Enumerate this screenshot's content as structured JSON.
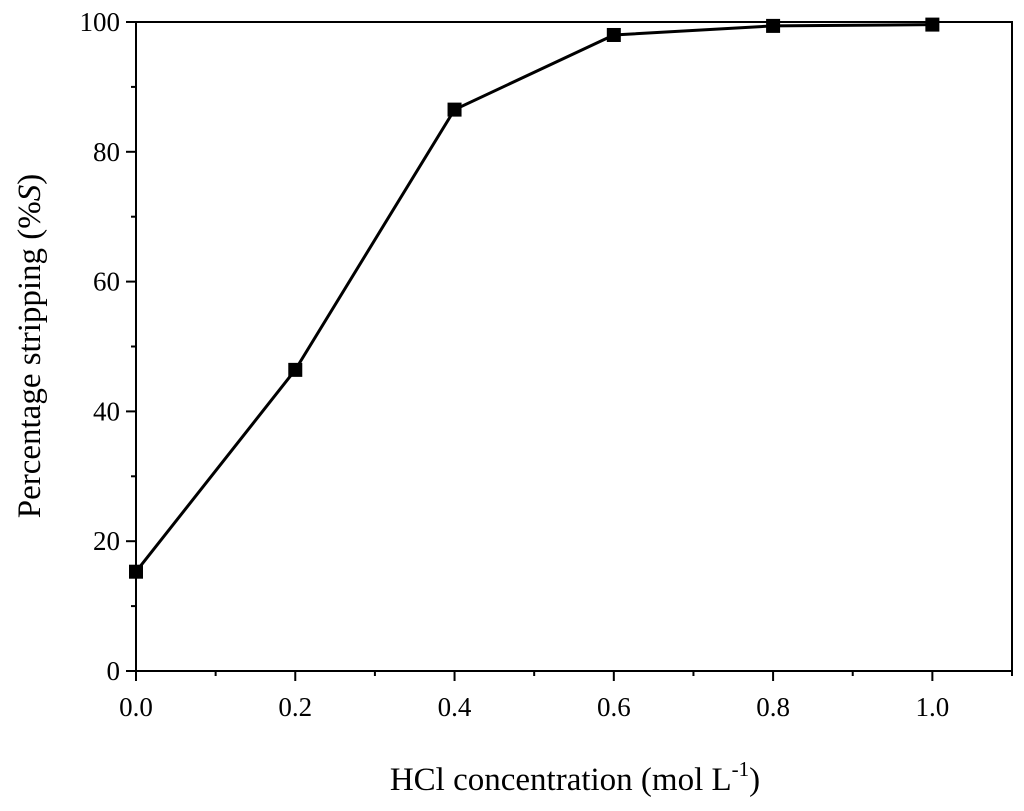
{
  "chart_data": {
    "type": "line",
    "xlabel": "HCl concentration (mol L",
    "xlabel_sup": "-1",
    "xlabel_end": ")",
    "ylabel": "Percentage stripping (%",
    "ylabel_italic": "S",
    "ylabel_end": ")",
    "xlim": [
      0,
      1.1
    ],
    "ylim": [
      0,
      100
    ],
    "xticks": [
      "0.0",
      "0.2",
      "0.4",
      "0.6",
      "0.8",
      "1.0"
    ],
    "yticks": [
      "0",
      "20",
      "40",
      "60",
      "80",
      "100"
    ],
    "grid": false,
    "line_color": "#000000",
    "marker": "square",
    "series": [
      {
        "x": [
          0.0,
          0.2,
          0.4,
          0.6,
          0.8,
          1.0
        ],
        "y": [
          15.3,
          46.4,
          86.5,
          98.0,
          99.4,
          99.6
        ]
      }
    ]
  }
}
